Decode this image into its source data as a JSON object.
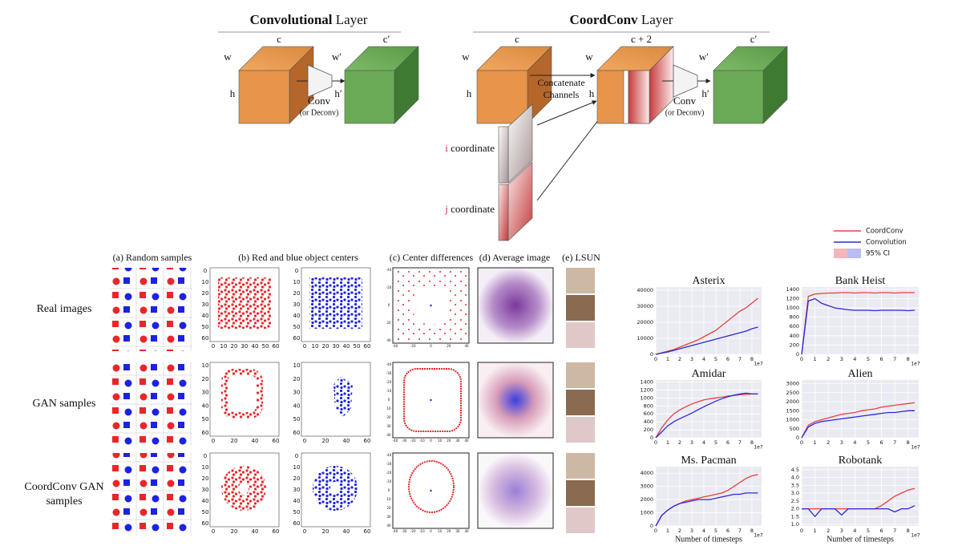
{
  "diagram": {
    "conv": {
      "title_bold": "Convolutional",
      "title_rest": "Layer",
      "c": "c",
      "w": "w",
      "h": "h",
      "op": "Conv",
      "op_alt": "(or Deconv)",
      "c_out": "c′",
      "w_out": "w′",
      "h_out": "h′"
    },
    "coordconv": {
      "title_bold": "CoordConv",
      "title_rest": "Layer",
      "c": "c",
      "w": "w",
      "h": "h",
      "concat": [
        "Concatenate",
        "Channels"
      ],
      "c_cat": "c + 2",
      "w_cat": "w",
      "h_cat": "h",
      "op": "Conv",
      "op_alt": "(or Deconv)",
      "c_out": "c′",
      "w_out": "w′",
      "h_out": "h′",
      "i_letter": "i",
      "i_rest": "coordinate",
      "j_letter": "j",
      "j_rest": "coordinate"
    }
  },
  "panels": {
    "columns": [
      "(a) Random samples",
      "(b) Red and blue object centers",
      "(c) Center differences",
      "(d) Average image",
      "(e) LSUN"
    ],
    "rows": [
      {
        "label": [
          "Real images"
        ],
        "b_yticks": [
          0,
          10,
          20,
          30,
          40,
          50,
          60
        ],
        "b_xticks": [
          0,
          10,
          20,
          30,
          40,
          50,
          60
        ],
        "c_yticks": [
          -40,
          -20,
          0,
          20,
          40
        ],
        "c_xticks": [
          -40,
          -20,
          0,
          20,
          40
        ]
      },
      {
        "label": [
          "GAN samples"
        ],
        "b_yticks": [
          10,
          20,
          30,
          40,
          50,
          60
        ],
        "b_xticks": [
          0,
          20,
          40,
          60
        ],
        "c_yticks": [
          -40,
          -30,
          -20,
          -10,
          0,
          10,
          20,
          30,
          40
        ],
        "c_xticks": [
          -40,
          -30,
          -20,
          -10,
          0,
          10,
          20,
          30,
          40
        ]
      },
      {
        "label": [
          "CoordConv GAN",
          "samples"
        ],
        "b_yticks": [
          0,
          10,
          20,
          30,
          40,
          50,
          60
        ],
        "b_xticks": [
          0,
          20,
          40,
          60
        ],
        "c_yticks": [
          -40,
          -30,
          -20,
          -10,
          0,
          10,
          20,
          30,
          40
        ],
        "c_xticks": [
          -40,
          -30,
          -20,
          -10,
          0,
          10,
          20,
          30,
          40
        ]
      }
    ]
  },
  "legend": {
    "ci": "95% CI",
    "ci_colors": [
      "#f4b6bb",
      "#b9bdf2"
    ]
  },
  "chart_data": [
    {
      "type": "line",
      "title": "Asterix",
      "x": [
        0,
        0.5,
        1,
        1.5,
        2,
        2.5,
        3,
        3.5,
        4,
        4.5,
        5,
        5.5,
        6,
        6.5,
        7,
        7.5,
        8,
        8.5
      ],
      "xlim": [
        0,
        8.8
      ],
      "xticks": [
        0,
        1,
        2,
        3,
        4,
        5,
        6,
        7,
        8
      ],
      "x_offset": "1e7",
      "ylim": [
        0,
        42000
      ],
      "yticks": [
        0,
        10000,
        20000,
        30000,
        40000
      ],
      "grid": true,
      "series": [
        {
          "name": "CoordConv",
          "color": "#e8413c",
          "values": [
            0,
            1000,
            2000,
            3000,
            4500,
            6000,
            7500,
            9000,
            11000,
            13000,
            15000,
            18000,
            21000,
            24000,
            27000,
            29000,
            32000,
            35000
          ]
        },
        {
          "name": "Convolution",
          "color": "#2a2ad8",
          "values": [
            0,
            800,
            1500,
            2500,
            3500,
            4500,
            5500,
            6500,
            7500,
            8500,
            9500,
            10500,
            11500,
            12500,
            13500,
            14500,
            16000,
            17000
          ]
        }
      ]
    },
    {
      "type": "line",
      "title": "Bank Heist",
      "x": [
        0,
        0.5,
        1,
        1.5,
        2,
        2.5,
        3,
        3.5,
        4,
        4.5,
        5,
        5.5,
        6,
        6.5,
        7,
        7.5,
        8,
        8.5
      ],
      "xlim": [
        0,
        8.8
      ],
      "xticks": [
        0,
        1,
        2,
        3,
        4,
        5,
        6,
        7,
        8
      ],
      "x_offset": "1e7",
      "ylim": [
        0,
        1450
      ],
      "yticks": [
        0,
        200,
        400,
        600,
        800,
        1000,
        1200,
        1400
      ],
      "grid": true,
      "series": [
        {
          "name": "CoordConv",
          "color": "#e8413c",
          "values": [
            0,
            1250,
            1300,
            1310,
            1320,
            1320,
            1330,
            1330,
            1320,
            1330,
            1330,
            1320,
            1330,
            1330,
            1320,
            1330,
            1330,
            1330
          ]
        },
        {
          "name": "Convolution",
          "color": "#2a2ad8",
          "values": [
            0,
            1150,
            1200,
            1100,
            1050,
            1000,
            980,
            960,
            950,
            950,
            950,
            940,
            950,
            950,
            950,
            950,
            940,
            950
          ]
        }
      ]
    },
    {
      "type": "line",
      "title": "Amidar",
      "x": [
        0,
        0.5,
        1,
        1.5,
        2,
        2.5,
        3,
        3.5,
        4,
        4.5,
        5,
        5.5,
        6,
        6.5,
        7,
        7.5,
        8,
        8.5
      ],
      "xlim": [
        0,
        8.8
      ],
      "xticks": [
        0,
        1,
        2,
        3,
        4,
        5,
        6,
        7,
        8
      ],
      "x_offset": "1e7",
      "ylim": [
        0,
        1450
      ],
      "yticks": [
        0,
        200,
        400,
        600,
        800,
        1000,
        1200,
        1400
      ],
      "grid": true,
      "series": [
        {
          "name": "CoordConv",
          "color": "#e8413c",
          "values": [
            0,
            250,
            450,
            600,
            700,
            780,
            850,
            900,
            950,
            980,
            1000,
            1020,
            1050,
            1060,
            1080,
            1090,
            1100,
            1100
          ]
        },
        {
          "name": "Convolution",
          "color": "#2a2ad8",
          "values": [
            0,
            150,
            300,
            400,
            480,
            550,
            620,
            700,
            780,
            850,
            920,
            980,
            1030,
            1070,
            1100,
            1120,
            1100,
            1100
          ]
        }
      ]
    },
    {
      "type": "line",
      "title": "Alien",
      "x": [
        0,
        0.5,
        1,
        1.5,
        2,
        2.5,
        3,
        3.5,
        4,
        4.5,
        5,
        5.5,
        6,
        6.5,
        7,
        7.5,
        8,
        8.5
      ],
      "xlim": [
        0,
        8.8
      ],
      "xticks": [
        0,
        1,
        2,
        3,
        4,
        5,
        6,
        7,
        8
      ],
      "x_offset": "1e7",
      "ylim": [
        0,
        3200
      ],
      "yticks": [
        0,
        500,
        1000,
        1500,
        2000,
        2500,
        3000
      ],
      "grid": true,
      "series": [
        {
          "name": "CoordConv",
          "color": "#e8413c",
          "values": [
            0,
            700,
            900,
            1000,
            1100,
            1200,
            1300,
            1350,
            1400,
            1500,
            1550,
            1600,
            1700,
            1750,
            1800,
            1850,
            1900,
            1950
          ]
        },
        {
          "name": "Convolution",
          "color": "#2a2ad8",
          "values": [
            0,
            600,
            800,
            900,
            950,
            1000,
            1050,
            1100,
            1150,
            1200,
            1250,
            1300,
            1350,
            1400,
            1400,
            1450,
            1500,
            1500
          ]
        }
      ]
    },
    {
      "type": "line",
      "title": "Ms. Pacman",
      "xlabel": "Number of timesteps",
      "x": [
        0,
        0.5,
        1,
        1.5,
        2,
        2.5,
        3,
        3.5,
        4,
        4.5,
        5,
        5.5,
        6,
        6.5,
        7,
        7.5,
        8,
        8.5
      ],
      "xlim": [
        0,
        8.8
      ],
      "xticks": [
        0,
        1,
        2,
        3,
        4,
        5,
        6,
        7,
        8
      ],
      "x_offset": "1e7",
      "ylim": [
        0,
        4500
      ],
      "yticks": [
        0,
        1000,
        2000,
        3000,
        4000
      ],
      "grid": true,
      "series": [
        {
          "name": "CoordConv",
          "color": "#e8413c",
          "values": [
            0,
            800,
            1200,
            1500,
            1700,
            1900,
            2000,
            2100,
            2200,
            2300,
            2400,
            2500,
            2700,
            3000,
            3300,
            3600,
            3800,
            3900
          ]
        },
        {
          "name": "Convolution",
          "color": "#2a2ad8",
          "values": [
            0,
            800,
            1200,
            1500,
            1700,
            1800,
            1900,
            2000,
            2000,
            2000,
            2100,
            2200,
            2300,
            2400,
            2400,
            2500,
            2500,
            2500
          ]
        }
      ]
    },
    {
      "type": "line",
      "title": "Robotank",
      "xlabel": "Number of timesteps",
      "x": [
        0,
        0.5,
        1,
        1.5,
        2,
        2.5,
        3,
        3.5,
        4,
        4.5,
        5,
        5.5,
        6,
        6.5,
        7,
        7.5,
        8,
        8.5
      ],
      "xlim": [
        0,
        8.8
      ],
      "xticks": [
        0,
        1,
        2,
        3,
        4,
        5,
        6,
        7,
        8
      ],
      "x_offset": "1e7",
      "ylim": [
        0.9,
        4.7
      ],
      "yticks": [
        {
          "value": 1,
          "label": "1.0"
        },
        1.5,
        {
          "value": 2,
          "label": "2.0"
        },
        2.5,
        {
          "value": 3,
          "label": "3.0"
        },
        3.5,
        {
          "value": 4,
          "label": "4.0"
        },
        4.5
      ],
      "grid": true,
      "series": [
        {
          "name": "CoordConv",
          "color": "#e8413c",
          "values": [
            2,
            2,
            2,
            2,
            2,
            2,
            2,
            2,
            2,
            2,
            2,
            2,
            2.2,
            2.5,
            2.8,
            3,
            3.2,
            3.3
          ]
        },
        {
          "name": "Convolution",
          "color": "#2a2ad8",
          "values": [
            2,
            2,
            1.5,
            2,
            2,
            2,
            1.6,
            2,
            2,
            2,
            2,
            2,
            2,
            2,
            1.8,
            2,
            2,
            2.2
          ]
        }
      ]
    }
  ]
}
